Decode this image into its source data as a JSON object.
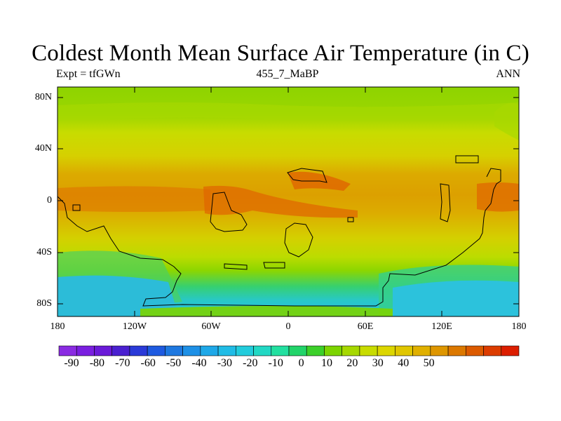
{
  "title": "Coldest Month Mean Surface Air Temperature (in C)",
  "subtitle": {
    "left": "Expt = tfGWn",
    "center": "455_7_MaBP",
    "right": "ANN"
  },
  "map": {
    "lat_ticks": [
      "80N",
      "40N",
      "0",
      "40S",
      "80S"
    ],
    "lon_ticks": [
      "180",
      "120W",
      "60W",
      "0",
      "60E",
      "120E",
      "180"
    ]
  },
  "colorbar": {
    "labels": [
      "-90",
      "-80",
      "-70",
      "-60",
      "-50",
      "-40",
      "-30",
      "-20",
      "-10",
      "0",
      "10",
      "20",
      "30",
      "40",
      "50"
    ],
    "colors": [
      "#8a2be2",
      "#7a1fe0",
      "#6a1ad8",
      "#4a20d0",
      "#2a3ad8",
      "#1e5ae0",
      "#1e78e0",
      "#1e90e6",
      "#1ea8e8",
      "#20bce6",
      "#22ccdc",
      "#22d8c4",
      "#22e0a0",
      "#22d46a",
      "#3cd02a",
      "#7cd400",
      "#a6d800",
      "#c8dc00",
      "#dcd600",
      "#e0c600",
      "#e0b000",
      "#de9600",
      "#dc7800",
      "#dc5a00",
      "#dc3c00",
      "#dc1e00"
    ],
    "unit": "C"
  },
  "colors": {
    "polar_ice": "#2ec0e6",
    "subpolar": "#38e0a0",
    "cold_green": "#86d800",
    "mild": "#c8dc00",
    "warm": "#dcc000",
    "hot": "#dca000",
    "hottest": "#e06400",
    "coast": "#000000"
  }
}
